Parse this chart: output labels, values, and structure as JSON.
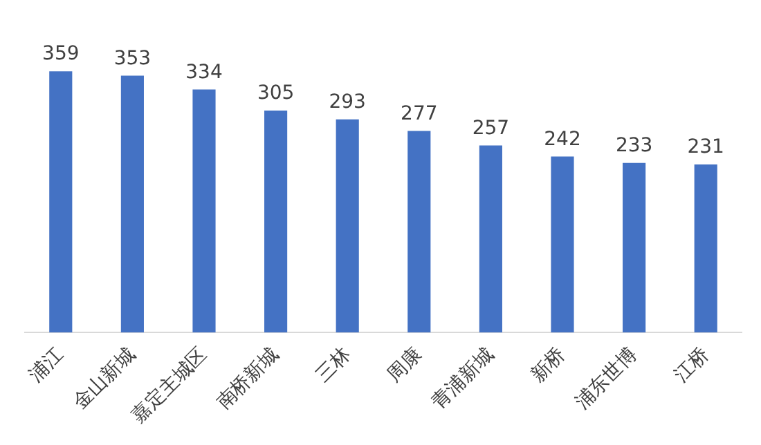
{
  "chart_data": {
    "type": "bar",
    "categories": [
      "浦江",
      "金山新城",
      "嘉定主城区",
      "南桥新城",
      "三林",
      "周康",
      "青浦新城",
      "新桥",
      "浦东世博",
      "江桥"
    ],
    "values": [
      359,
      353,
      334,
      305,
      293,
      277,
      257,
      242,
      233,
      231
    ],
    "color": "#4472c4",
    "data_labels": true,
    "tick_labels": "x",
    "grid": false,
    "legend": false
  }
}
